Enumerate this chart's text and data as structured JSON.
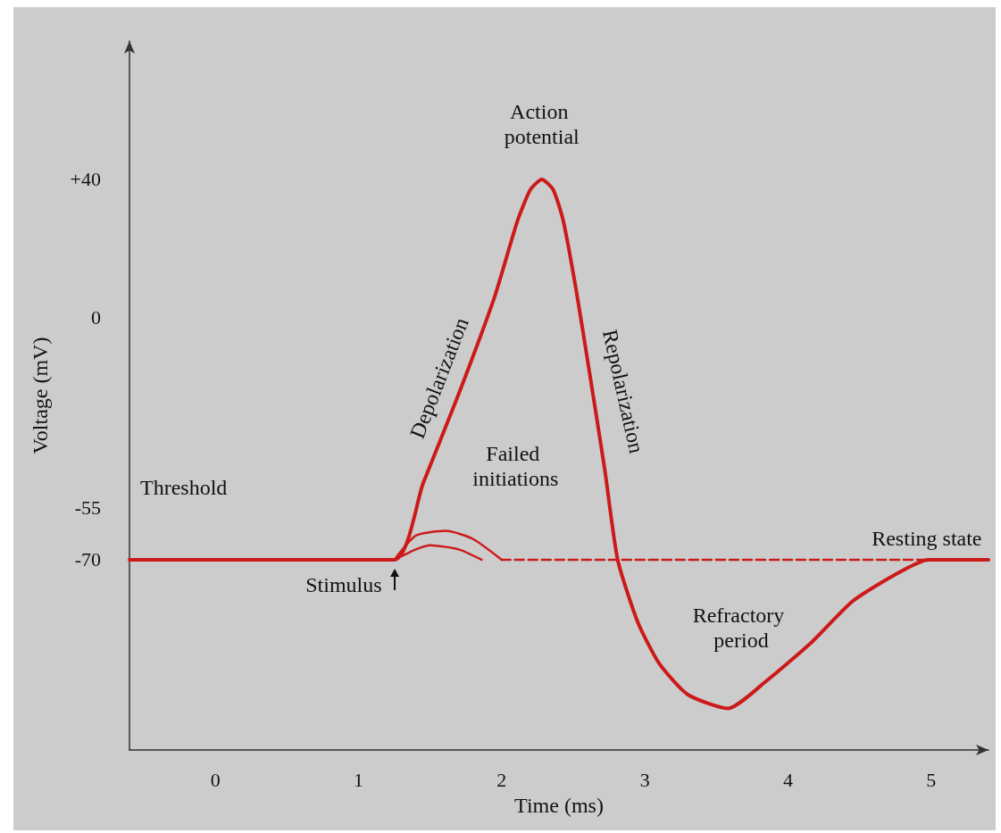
{
  "chart_data": {
    "type": "line",
    "xlabel": "Time (ms)",
    "ylabel": "Voltage (mV)",
    "xlim": [
      -0.6,
      5.4
    ],
    "xticks": [
      0,
      1,
      2,
      3,
      4,
      5
    ],
    "ylim": [
      -125,
      80
    ],
    "yticks": [
      {
        "value": 40,
        "label": "+40"
      },
      0,
      -55,
      -70
    ],
    "grid": false,
    "marker": "none",
    "series": [
      {
        "color": "#cc1a1a",
        "x": [
          -0.6,
          1.25,
          1.45,
          1.7,
          1.95,
          2.11,
          2.2,
          2.28,
          2.36,
          2.43,
          2.52,
          2.61,
          2.72,
          2.81,
          2.95,
          3.1,
          3.3,
          3.58,
          3.85,
          4.16,
          4.45,
          4.73,
          4.98,
          5.4
        ],
        "values": [
          -70,
          -70,
          -48,
          -22,
          6,
          28,
          37,
          40,
          37,
          28,
          8,
          -15,
          -44,
          -70,
          -88,
          -100,
          -109,
          -113,
          -105,
          -94,
          -82,
          -74.7,
          -70,
          -70
        ]
      },
      {
        "color": "#cc1a1a",
        "x": [
          1.25,
          1.4,
          1.61,
          1.8,
          2.0
        ],
        "values": [
          -70,
          -63,
          -61.6,
          -64,
          -70
        ]
      },
      {
        "color": "#cc1a1a",
        "x": [
          1.25,
          1.4,
          1.5,
          1.7,
          1.86
        ],
        "values": [
          -70,
          -67,
          -65.8,
          -67,
          -70
        ]
      },
      {
        "color": "#cc1a1a",
        "line_style": "dashed",
        "x": [
          2.0,
          5.0
        ],
        "values": [
          -70,
          -70
        ]
      }
    ],
    "annotations": [
      {
        "text": "Action potential",
        "x": 2.28,
        "y": 40
      },
      {
        "text": "Depolarization",
        "x": 1.75,
        "y": -20
      },
      {
        "text": "Repolarization",
        "x": 2.65,
        "y": -20
      },
      {
        "text": "Failed initiations",
        "x": 1.61,
        "y": -61.6
      },
      "Refractory period",
      {
        "text": "Resting state",
        "x": 5.0,
        "y": -70
      },
      {
        "text": "Stimulus",
        "x": 1.25,
        "y": -70
      },
      "Threshold"
    ]
  }
}
